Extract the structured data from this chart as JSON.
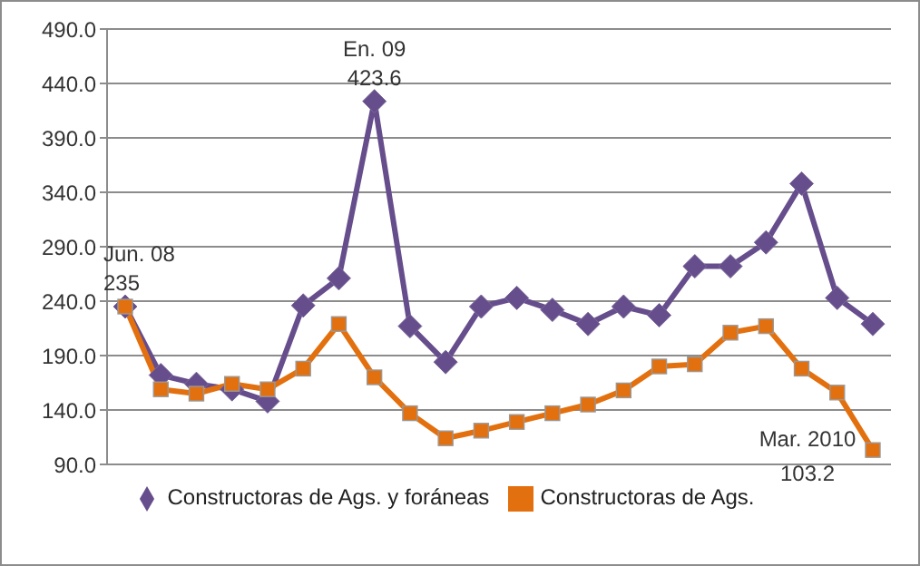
{
  "chart_data": {
    "type": "line",
    "categories": [
      null,
      null,
      null,
      null,
      null,
      null,
      null,
      null,
      null,
      null,
      null,
      null,
      null,
      null,
      null,
      null,
      null,
      null,
      null,
      null,
      null,
      null
    ],
    "series": [
      {
        "name": "Constructoras de Ags. y foráneas",
        "color": "#664d8c",
        "marker": "diamond",
        "values": [
          235,
          172,
          164,
          159,
          148,
          236,
          261,
          423.6,
          217,
          184,
          235,
          243,
          232,
          219,
          235,
          227,
          272,
          272,
          294,
          348,
          243,
          219
        ],
        "value_labels": [
          "235",
          null,
          null,
          null,
          null,
          null,
          null,
          "423.6",
          null,
          null,
          null,
          null,
          null,
          null,
          null,
          null,
          null,
          null,
          null,
          null,
          null,
          null
        ]
      },
      {
        "name": "Constructoras de Ags.",
        "color": "#e3700f",
        "marker": "square",
        "values": [
          235,
          159,
          155,
          164,
          159,
          178,
          219,
          170,
          137,
          114,
          121,
          129,
          137,
          145,
          158,
          180,
          182,
          211,
          217,
          178,
          156,
          103.2
        ],
        "value_labels": [
          null,
          null,
          null,
          null,
          null,
          null,
          null,
          null,
          null,
          null,
          null,
          null,
          null,
          null,
          null,
          null,
          null,
          null,
          null,
          null,
          null,
          "103.2"
        ]
      }
    ],
    "annotations": [
      "Jun. 08",
      "En. 09",
      "Mar. 2010"
    ],
    "ylim": [
      90,
      490
    ],
    "yticks": [
      {
        "value": 90,
        "label": "90.0"
      },
      {
        "value": 140,
        "label": "140.0"
      },
      {
        "value": 190,
        "label": "190.0"
      },
      {
        "value": 240,
        "label": "240.0"
      },
      {
        "value": 290,
        "label": "290.0"
      },
      {
        "value": 340,
        "label": "340.0"
      },
      {
        "value": 390,
        "label": "390.0"
      },
      {
        "value": 440,
        "label": "440.0"
      },
      {
        "value": 490,
        "label": "490.0"
      }
    ],
    "grid": "y",
    "legend": "bottom",
    "tick_labels": "y",
    "line_style": "solid"
  }
}
